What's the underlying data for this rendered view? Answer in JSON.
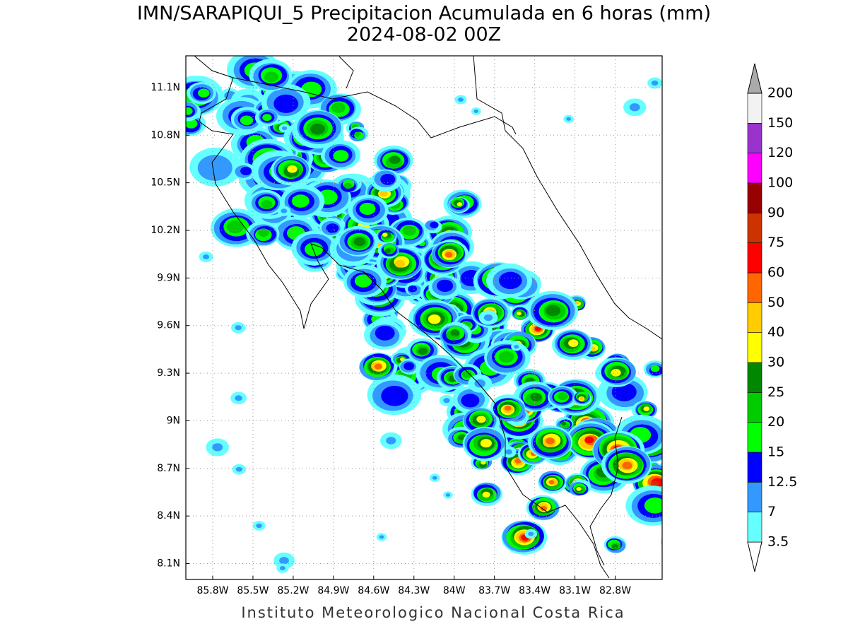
{
  "header": {
    "title": "IMN/SARAPIQUI_5 Precipitacion Acumulada en 6 horas (mm)",
    "subtitle": "2024-08-02 00Z"
  },
  "map": {
    "lon_lim": [
      86.0,
      82.45
    ],
    "lat_lim": [
      8.0,
      11.3
    ],
    "grid": true,
    "lon_ticks": [
      {
        "value": 85.8,
        "label": "85.8W"
      },
      {
        "value": 85.5,
        "label": "85.5W"
      },
      {
        "value": 85.2,
        "label": "85.2W"
      },
      {
        "value": 84.9,
        "label": "84.9W"
      },
      {
        "value": 84.6,
        "label": "84.6W"
      },
      {
        "value": 84.3,
        "label": "84.3W"
      },
      {
        "value": 84,
        "label": "84W"
      },
      {
        "value": 83.7,
        "label": "83.7W"
      },
      {
        "value": 83.4,
        "label": "83.4W"
      },
      {
        "value": 83.1,
        "label": "83.1W"
      },
      {
        "value": 82.8,
        "label": "82.8W"
      }
    ],
    "lat_ticks": [
      {
        "value": 11.1,
        "label": "11.1N"
      },
      {
        "value": 10.8,
        "label": "10.8N"
      },
      {
        "value": 10.5,
        "label": "10.5N"
      },
      {
        "value": 10.2,
        "label": "10.2N"
      },
      {
        "value": 9.9,
        "label": "9.9N"
      },
      {
        "value": 9.6,
        "label": "9.6N"
      },
      {
        "value": 9.3,
        "label": "9.3N"
      },
      {
        "value": 9,
        "label": "9N"
      },
      {
        "value": 8.7,
        "label": "8.7N"
      },
      {
        "value": 8.4,
        "label": "8.4N"
      },
      {
        "value": 8.1,
        "label": "8.1N"
      }
    ]
  },
  "colorbar": {
    "levels": [
      3.5,
      7,
      12.5,
      15,
      20,
      25,
      30,
      40,
      50,
      60,
      75,
      90,
      100,
      120,
      150,
      200
    ],
    "colors": [
      "#ffffff",
      "#66ffff",
      "#3399ff",
      "#0000ff",
      "#00ff00",
      "#00cc00",
      "#008800",
      "#ffff00",
      "#ffcc00",
      "#ff6600",
      "#ff0000",
      "#cc3300",
      "#990000",
      "#ff00ff",
      "#9933cc",
      "#f2f2f2",
      "#aaaaaa"
    ]
  },
  "footer": "Instituto Meteorologico Nacional Costa Rica"
}
